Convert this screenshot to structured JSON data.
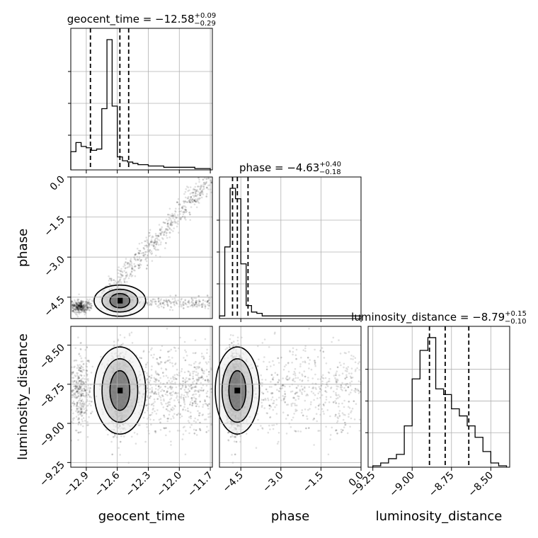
{
  "chart_data": {
    "type": "corner",
    "parameters": [
      {
        "name": "geocent_time",
        "range": [
          -13.05,
          -11.68
        ],
        "ticks": [
          -12.9,
          -12.6,
          -12.3,
          -12.0,
          -11.7
        ],
        "tick_labels": [
          "−12.9",
          "−12.6",
          "−12.3",
          "−12.0",
          "−11.7"
        ],
        "median": "−12.58",
        "upper": "+0.09",
        "lower": "−0.29",
        "quantiles": [
          -12.86,
          -12.575,
          -12.49
        ]
      },
      {
        "name": "phase",
        "range": [
          -5.3,
          0.0
        ],
        "ticks": [
          -4.5,
          -3.0,
          -1.5,
          0.0
        ],
        "tick_labels": [
          "−4.5",
          "−3.0",
          "−1.5",
          "0.0"
        ],
        "median": "−4.63",
        "upper": "+0.40",
        "lower": "−0.18",
        "quantiles": [
          -4.81,
          -4.63,
          -4.23
        ]
      },
      {
        "name": "luminosity_distance",
        "range": [
          -9.28,
          -8.38
        ],
        "ticks": [
          -9.25,
          -9.0,
          -8.75,
          -8.5
        ],
        "tick_labels": [
          "−9.25",
          "−9.00",
          "−8.75",
          "−8.50"
        ],
        "median": "−8.79",
        "upper": "+0.15",
        "lower": "−0.10",
        "quantiles": [
          -8.89,
          -8.79,
          -8.64
        ]
      }
    ],
    "histograms": [
      {
        "parameter": "geocent_time",
        "bin_edges": [
          -13.05,
          -13.0,
          -12.95,
          -12.9,
          -12.85,
          -12.8,
          -12.75,
          -12.7,
          -12.65,
          -12.6,
          -12.55,
          -12.5,
          -12.45,
          -12.4,
          -12.35,
          -12.3,
          -12.25,
          -12.2,
          -12.15,
          -12.1,
          -12.05,
          -12.0,
          -11.95,
          -11.9,
          -11.85,
          -11.8,
          -11.75,
          -11.7
        ],
        "counts": [
          0.14,
          0.21,
          0.18,
          0.17,
          0.15,
          0.16,
          0.47,
          1.0,
          0.49,
          0.1,
          0.07,
          0.06,
          0.05,
          0.04,
          0.04,
          0.03,
          0.03,
          0.03,
          0.02,
          0.02,
          0.02,
          0.02,
          0.02,
          0.02,
          0.01,
          0.01,
          0.01
        ]
      },
      {
        "parameter": "phase",
        "bin_edges": [
          -5.3,
          -5.1,
          -4.9,
          -4.7,
          -4.5,
          -4.3,
          -4.1,
          -3.9,
          -3.7,
          -3.5,
          -3.3,
          -3.1,
          -2.9,
          -2.7,
          -2.5,
          -2.3,
          -2.1,
          -1.9,
          -1.7,
          -1.5,
          -1.3,
          -1.1,
          -0.9,
          -0.7,
          -0.5,
          -0.3,
          -0.1,
          0.0
        ],
        "counts": [
          0.02,
          0.55,
          1.0,
          0.92,
          0.42,
          0.1,
          0.05,
          0.04,
          0.02,
          0.02,
          0.02,
          0.02,
          0.02,
          0.02,
          0.02,
          0.02,
          0.02,
          0.02,
          0.02,
          0.02,
          0.02,
          0.02,
          0.02,
          0.02,
          0.02,
          0.02,
          0.02
        ]
      },
      {
        "parameter": "luminosity_distance",
        "bin_edges": [
          -9.25,
          -9.2,
          -9.15,
          -9.1,
          -9.05,
          -9.0,
          -8.95,
          -8.9,
          -8.85,
          -8.8,
          -8.75,
          -8.7,
          -8.65,
          -8.6,
          -8.55,
          -8.5,
          -8.45,
          -8.4
        ],
        "counts": [
          0.01,
          0.03,
          0.06,
          0.09,
          0.29,
          0.62,
          0.82,
          0.91,
          0.55,
          0.51,
          0.41,
          0.36,
          0.29,
          0.21,
          0.11,
          0.03,
          0.01
        ]
      }
    ],
    "scatter_panels": [
      {
        "x": "geocent_time",
        "y": "phase"
      },
      {
        "x": "geocent_time",
        "y": "luminosity_distance"
      },
      {
        "x": "phase",
        "y": "luminosity_distance"
      }
    ]
  }
}
